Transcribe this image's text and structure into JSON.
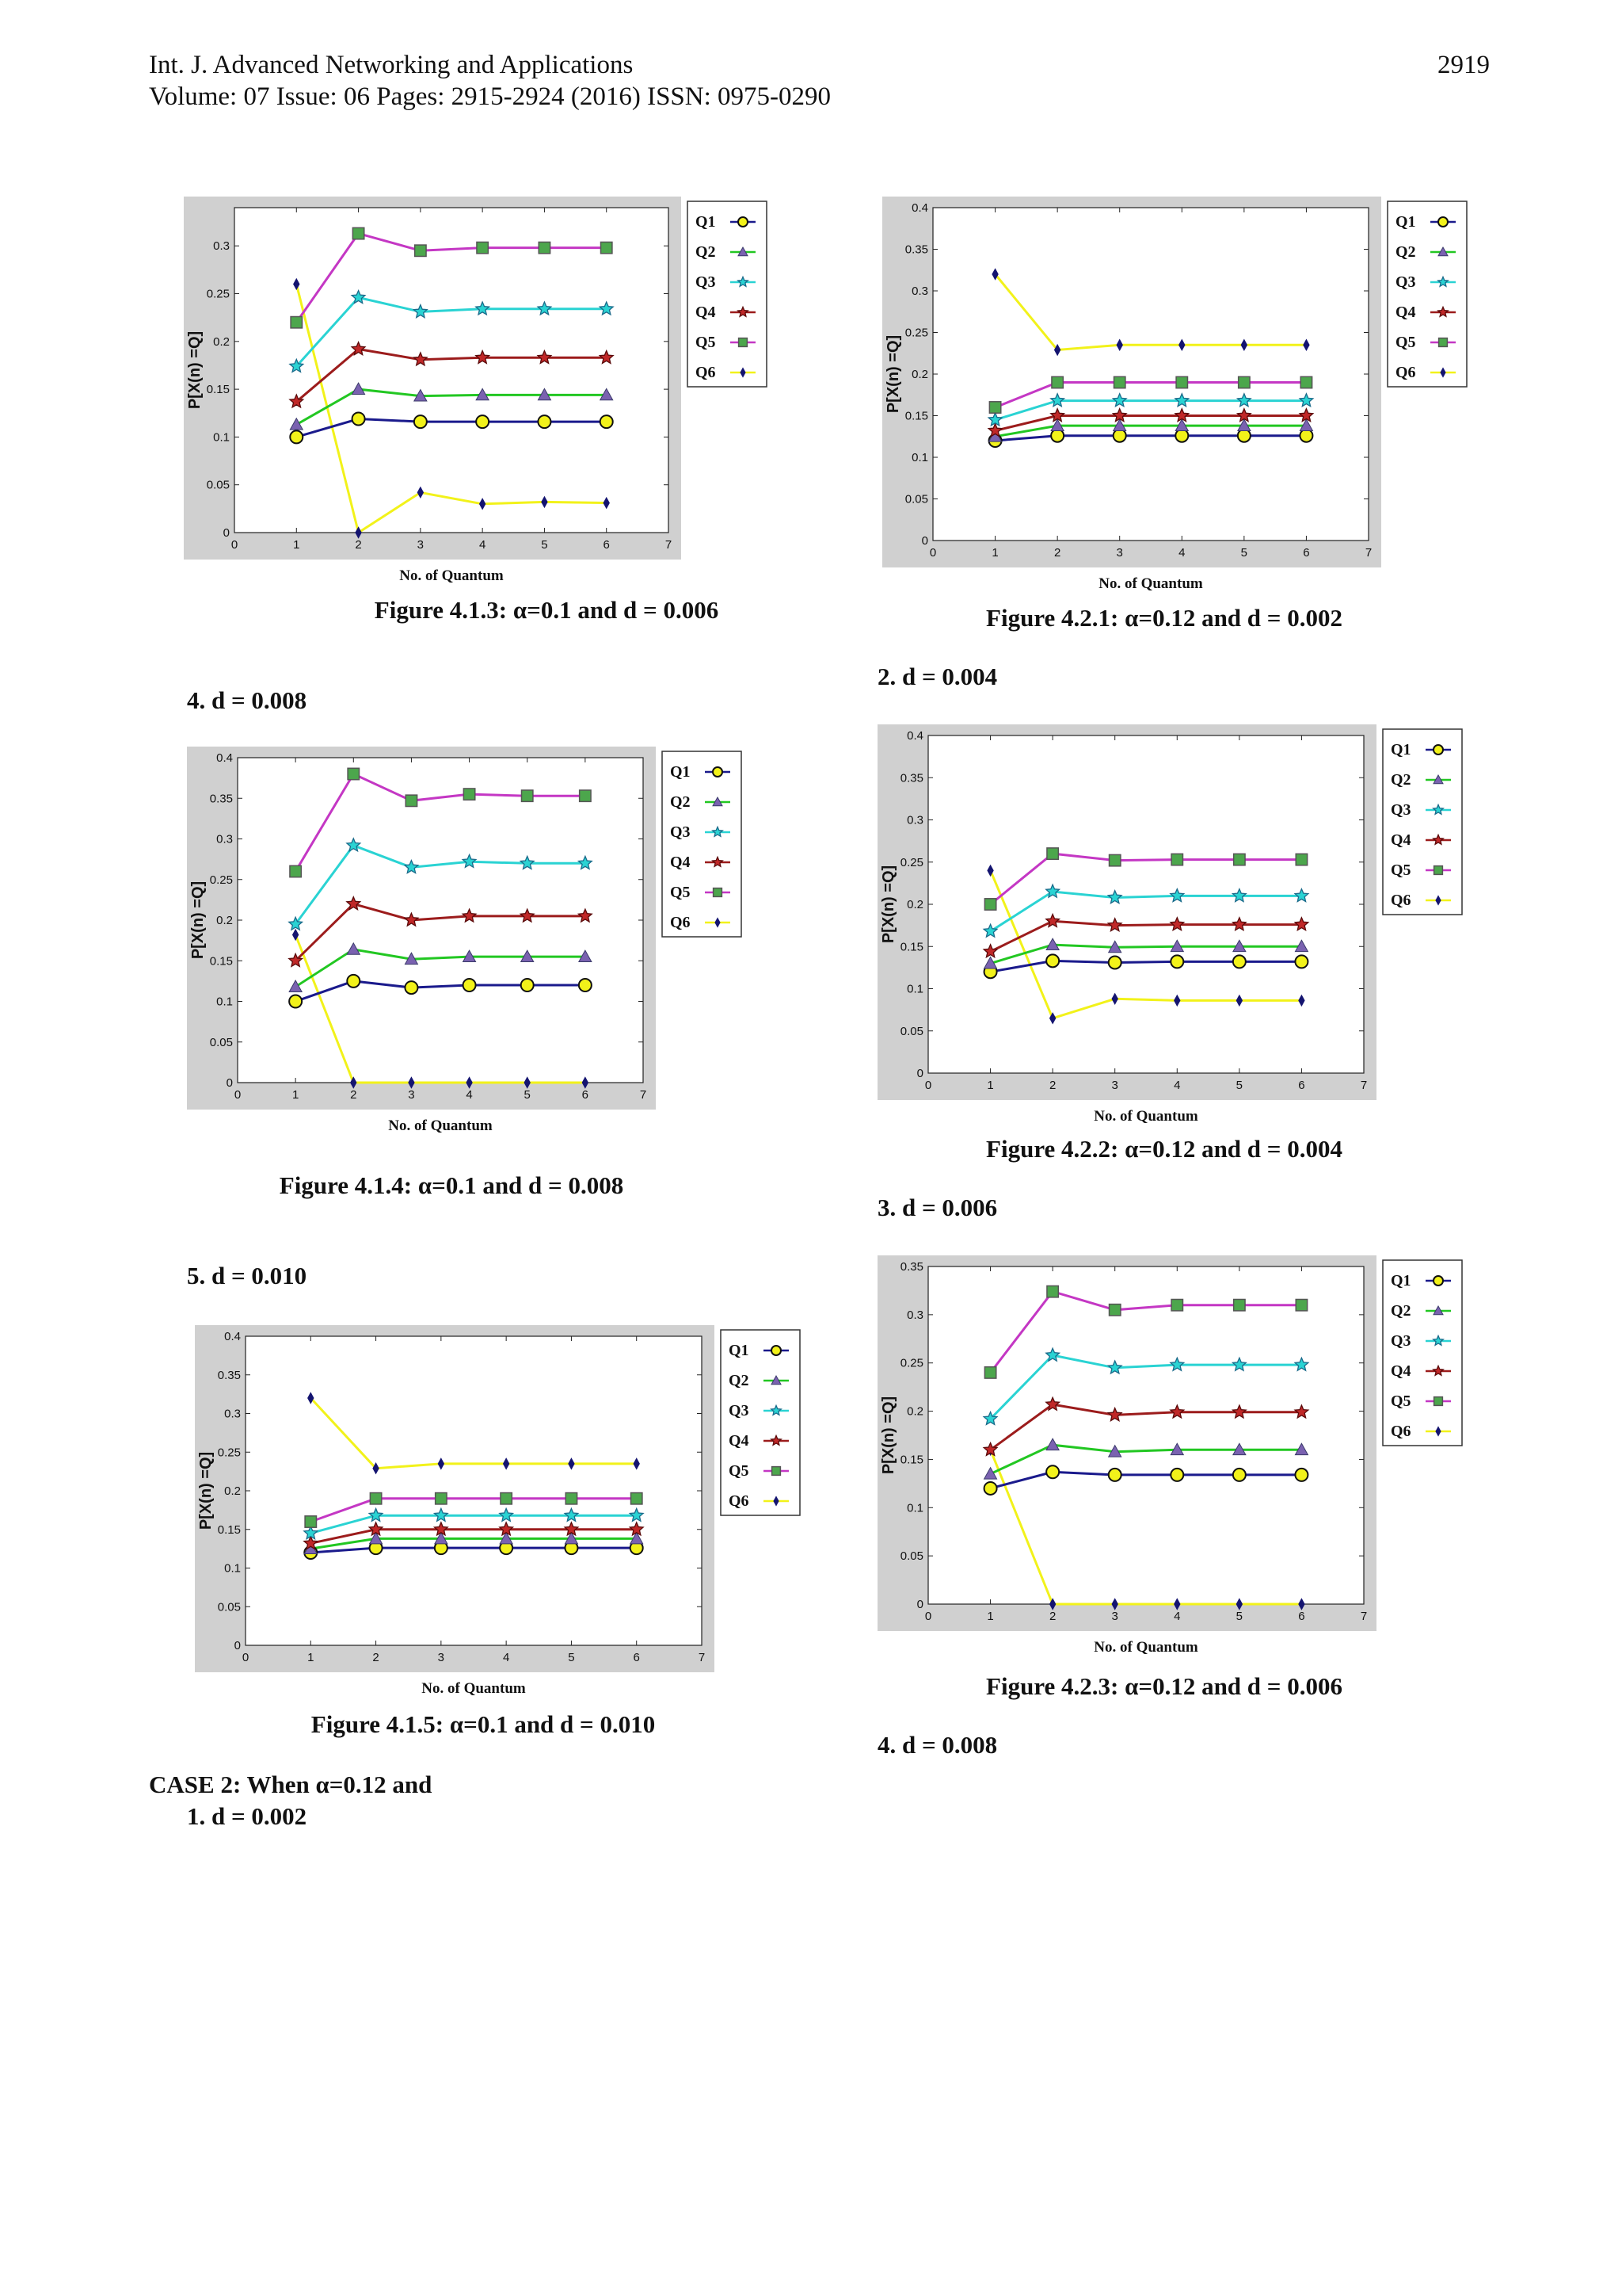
{
  "header": {
    "journal": "Int. J. Advanced Networking and Applications",
    "page_number": "2919",
    "volume_line": "Volume: 07 Issue: 06 Pages: 2915-2924 (2016) ISSN: 0975-0290"
  },
  "sections": {
    "s_left_4": "4.    d = 0.008",
    "s_left_5": "5.    d = 0.010",
    "case2": "CASE 2: When α=0.12 and",
    "s_case2_1": "1.    d = 0.002",
    "s_right_2": "2.    d = 0.004",
    "s_right_3": "3.    d = 0.006",
    "s_right_4": "4.    d = 0.008"
  },
  "colors": {
    "Q1": "#1a1a8c",
    "Q1_marker": "#f2f21a",
    "Q2": "#22c722",
    "Q2_marker": "#7a62b0",
    "Q3": "#2ad3d3",
    "Q3_marker": "#2ad3d3",
    "Q4": "#9c1c1c",
    "Q4_marker": "#c02828",
    "Q5": "#c437c4",
    "Q5_marker": "#4ca64c",
    "Q6": "#f2f21a",
    "Q6_marker": "#141470",
    "frame": "#d0d0d0"
  },
  "figures": [
    {
      "caption": "Figure 4.1.3:  α=0.1 and d = 0.006",
      "chart_data": {
        "type": "line",
        "xlabel": "No. of Quantum",
        "ylabel": "P[X(n) =Q]",
        "xlim": [
          0,
          7
        ],
        "ylim": [
          0,
          0.34
        ],
        "x_ticks": [
          "0",
          "1",
          "2",
          "3",
          "4",
          "5",
          "6",
          "7"
        ],
        "y_ticks": [
          "0",
          "0.05",
          "0.1",
          "0.15",
          "0.2",
          "0.25",
          "0.3"
        ],
        "legend_position": "outside-top-right",
        "x": [
          1,
          2,
          3,
          4,
          5,
          6
        ],
        "series": [
          {
            "name": "Q1",
            "values": [
              0.1,
              0.119,
              0.116,
              0.116,
              0.116,
              0.116
            ]
          },
          {
            "name": "Q2",
            "values": [
              0.113,
              0.15,
              0.143,
              0.144,
              0.144,
              0.144
            ]
          },
          {
            "name": "Q3",
            "values": [
              0.174,
              0.246,
              0.231,
              0.234,
              0.234,
              0.234
            ]
          },
          {
            "name": "Q4",
            "values": [
              0.137,
              0.192,
              0.181,
              0.183,
              0.183,
              0.183
            ]
          },
          {
            "name": "Q5",
            "values": [
              0.22,
              0.313,
              0.295,
              0.298,
              0.298,
              0.298
            ]
          },
          {
            "name": "Q6",
            "values": [
              0.26,
              0.0,
              0.042,
              0.03,
              0.032,
              0.031
            ]
          }
        ]
      }
    },
    {
      "caption": "Figure 4.1.4:  α=0.1 and  d = 0.008",
      "chart_data": {
        "type": "line",
        "xlabel": "No. of Quantum",
        "ylabel": "P[X(n) =Q]",
        "xlim": [
          0,
          7
        ],
        "ylim": [
          0,
          0.4
        ],
        "x_ticks": [
          "0",
          "1",
          "2",
          "3",
          "4",
          "5",
          "6",
          "7"
        ],
        "y_ticks": [
          "0",
          "0.05",
          "0.1",
          "0.15",
          "0.2",
          "0.25",
          "0.3",
          "0.35",
          "0.4"
        ],
        "legend_position": "outside-top-right",
        "x": [
          1,
          2,
          3,
          4,
          5,
          6
        ],
        "series": [
          {
            "name": "Q1",
            "values": [
              0.1,
              0.125,
              0.117,
              0.12,
              0.12,
              0.12
            ]
          },
          {
            "name": "Q2",
            "values": [
              0.118,
              0.164,
              0.152,
              0.155,
              0.155,
              0.155
            ]
          },
          {
            "name": "Q3",
            "values": [
              0.195,
              0.292,
              0.265,
              0.272,
              0.27,
              0.27
            ]
          },
          {
            "name": "Q4",
            "values": [
              0.15,
              0.22,
              0.2,
              0.205,
              0.205,
              0.205
            ]
          },
          {
            "name": "Q5",
            "values": [
              0.26,
              0.38,
              0.347,
              0.355,
              0.353,
              0.353
            ]
          },
          {
            "name": "Q6",
            "values": [
              0.182,
              0.0,
              0.0,
              0.0,
              0.0,
              0.0
            ]
          }
        ]
      }
    },
    {
      "caption": "Figure 4.1.5:  α=0.1 and d = 0.010",
      "chart_data": {
        "type": "line",
        "xlabel": "No. of Quantum",
        "ylabel": "P[X(n) =Q]",
        "xlim": [
          0,
          7
        ],
        "ylim": [
          0,
          0.4
        ],
        "x_ticks": [
          "0",
          "1",
          "2",
          "3",
          "4",
          "5",
          "6",
          "7"
        ],
        "y_ticks": [
          "0",
          "0.05",
          "0.1",
          "0.15",
          "0.2",
          "0.25",
          "0.3",
          "0.35",
          "0.4"
        ],
        "legend_position": "outside-top-right",
        "x": [
          1,
          2,
          3,
          4,
          5,
          6
        ],
        "series": [
          {
            "name": "Q1",
            "values": [
              0.12,
              0.126,
              0.126,
              0.126,
              0.126,
              0.126
            ]
          },
          {
            "name": "Q2",
            "values": [
              0.125,
              0.138,
              0.138,
              0.138,
              0.138,
              0.138
            ]
          },
          {
            "name": "Q3",
            "values": [
              0.145,
              0.168,
              0.168,
              0.168,
              0.168,
              0.168
            ]
          },
          {
            "name": "Q4",
            "values": [
              0.132,
              0.15,
              0.15,
              0.15,
              0.15,
              0.15
            ]
          },
          {
            "name": "Q5",
            "values": [
              0.16,
              0.19,
              0.19,
              0.19,
              0.19,
              0.19
            ]
          },
          {
            "name": "Q6",
            "values": [
              0.32,
              0.229,
              0.235,
              0.235,
              0.235,
              0.235
            ]
          }
        ]
      }
    },
    {
      "caption": "Figure 4.2.1:  α=0.12 and d = 0.002",
      "chart_data": {
        "type": "line",
        "xlabel": "No. of Quantum",
        "ylabel": "P[X(n) =Q]",
        "xlim": [
          0,
          7
        ],
        "ylim": [
          0,
          0.4
        ],
        "x_ticks": [
          "0",
          "1",
          "2",
          "3",
          "4",
          "5",
          "6",
          "7"
        ],
        "y_ticks": [
          "0",
          "0.05",
          "0.1",
          "0.15",
          "0.2",
          "0.25",
          "0.3",
          "0.35",
          "0.4"
        ],
        "legend_position": "outside-top-right",
        "x": [
          1,
          2,
          3,
          4,
          5,
          6
        ],
        "series": [
          {
            "name": "Q1",
            "values": [
              0.12,
              0.126,
              0.126,
              0.126,
              0.126,
              0.126
            ]
          },
          {
            "name": "Q2",
            "values": [
              0.125,
              0.138,
              0.138,
              0.138,
              0.138,
              0.138
            ]
          },
          {
            "name": "Q3",
            "values": [
              0.145,
              0.168,
              0.168,
              0.168,
              0.168,
              0.168
            ]
          },
          {
            "name": "Q4",
            "values": [
              0.132,
              0.15,
              0.15,
              0.15,
              0.15,
              0.15
            ]
          },
          {
            "name": "Q5",
            "values": [
              0.16,
              0.19,
              0.19,
              0.19,
              0.19,
              0.19
            ]
          },
          {
            "name": "Q6",
            "values": [
              0.32,
              0.229,
              0.235,
              0.235,
              0.235,
              0.235
            ]
          }
        ]
      }
    },
    {
      "caption": "Figure 4.2.2:  α=0.12 and d = 0.004",
      "chart_data": {
        "type": "line",
        "xlabel": "No. of Quantum",
        "ylabel": "P[X(n) =Q]",
        "xlim": [
          0,
          7
        ],
        "ylim": [
          0,
          0.4
        ],
        "x_ticks": [
          "0",
          "1",
          "2",
          "3",
          "4",
          "5",
          "6",
          "7"
        ],
        "y_ticks": [
          "0",
          "0.05",
          "0.1",
          "0.15",
          "0.2",
          "0.25",
          "0.3",
          "0.35",
          "0.4"
        ],
        "legend_position": "outside-top-right",
        "x": [
          1,
          2,
          3,
          4,
          5,
          6
        ],
        "series": [
          {
            "name": "Q1",
            "values": [
              0.12,
              0.133,
              0.131,
              0.132,
              0.132,
              0.132
            ]
          },
          {
            "name": "Q2",
            "values": [
              0.13,
              0.152,
              0.149,
              0.15,
              0.15,
              0.15
            ]
          },
          {
            "name": "Q3",
            "values": [
              0.168,
              0.215,
              0.208,
              0.21,
              0.21,
              0.21
            ]
          },
          {
            "name": "Q4",
            "values": [
              0.144,
              0.18,
              0.175,
              0.176,
              0.176,
              0.176
            ]
          },
          {
            "name": "Q5",
            "values": [
              0.2,
              0.26,
              0.252,
              0.253,
              0.253,
              0.253
            ]
          },
          {
            "name": "Q6",
            "values": [
              0.24,
              0.065,
              0.088,
              0.086,
              0.086,
              0.086
            ]
          }
        ]
      }
    },
    {
      "caption": "Figure 4.2.3:  α=0.12 and d = 0.006",
      "chart_data": {
        "type": "line",
        "xlabel": "No. of Quantum",
        "ylabel": "P[X(n) =Q]",
        "xlim": [
          0,
          7
        ],
        "ylim": [
          0,
          0.35
        ],
        "x_ticks": [
          "0",
          "1",
          "2",
          "3",
          "4",
          "5",
          "6",
          "7"
        ],
        "y_ticks": [
          "0",
          "0.05",
          "0.1",
          "0.15",
          "0.2",
          "0.25",
          "0.3",
          "0.35"
        ],
        "legend_position": "outside-top-right",
        "x": [
          1,
          2,
          3,
          4,
          5,
          6
        ],
        "series": [
          {
            "name": "Q1",
            "values": [
              0.12,
              0.137,
              0.134,
              0.134,
              0.134,
              0.134
            ]
          },
          {
            "name": "Q2",
            "values": [
              0.135,
              0.165,
              0.158,
              0.16,
              0.16,
              0.16
            ]
          },
          {
            "name": "Q3",
            "values": [
              0.192,
              0.258,
              0.245,
              0.248,
              0.248,
              0.248
            ]
          },
          {
            "name": "Q4",
            "values": [
              0.16,
              0.207,
              0.196,
              0.199,
              0.199,
              0.199
            ]
          },
          {
            "name": "Q5",
            "values": [
              0.24,
              0.324,
              0.305,
              0.31,
              0.31,
              0.31
            ]
          },
          {
            "name": "Q6",
            "values": [
              0.16,
              0.0,
              0.0,
              0.0,
              0.0,
              0.0
            ]
          }
        ]
      }
    }
  ]
}
